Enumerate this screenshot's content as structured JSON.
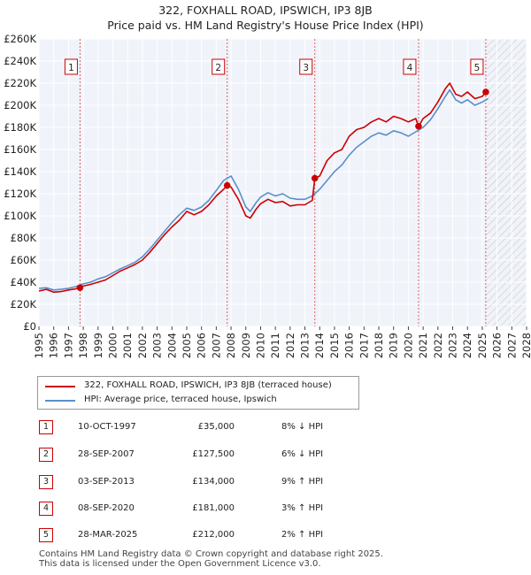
{
  "title_line1": "322, FOXHALL ROAD, IPSWICH, IP3 8JB",
  "title_line2": "Price paid vs. HM Land Registry's House Price Index (HPI)",
  "chart_data": {
    "type": "line",
    "xlim": [
      1995,
      2028
    ],
    "ylim": [
      0,
      260000
    ],
    "y_ticks": [
      0,
      20000,
      40000,
      60000,
      80000,
      100000,
      120000,
      140000,
      160000,
      180000,
      200000,
      220000,
      240000,
      260000
    ],
    "y_tick_labels": [
      "£0",
      "£20K",
      "£40K",
      "£60K",
      "£80K",
      "£100K",
      "£120K",
      "£140K",
      "£160K",
      "£180K",
      "£200K",
      "£220K",
      "£240K",
      "£260K"
    ],
    "x_ticks": [
      1995,
      1996,
      1997,
      1998,
      1999,
      2000,
      2001,
      2002,
      2003,
      2004,
      2005,
      2006,
      2007,
      2008,
      2009,
      2010,
      2011,
      2012,
      2013,
      2014,
      2015,
      2016,
      2017,
      2018,
      2019,
      2020,
      2021,
      2022,
      2023,
      2024,
      2025,
      2026,
      2027,
      2028
    ],
    "x_tick_labels": [
      "1995",
      "1996",
      "1997",
      "1998",
      "1999",
      "2000",
      "2001",
      "2002",
      "2003",
      "2004",
      "2005",
      "2006",
      "2007",
      "2008",
      "2009",
      "2010",
      "2011",
      "2012",
      "2013",
      "2014",
      "2015",
      "2016",
      "2017",
      "2018",
      "2019",
      "2020",
      "2021",
      "2022",
      "2023",
      "2024",
      "2025",
      "2026",
      "2027",
      "2028"
    ],
    "forecast_start": 2025.3,
    "series": [
      {
        "name": "322, FOXHALL ROAD, IPSWICH, IP3 8JB (terraced house)",
        "color": "#cc0000",
        "x": [
          1995.0,
          1995.5,
          1996.0,
          1996.5,
          1997.0,
          1997.5,
          1997.78,
          1998.0,
          1998.5,
          1999.0,
          1999.5,
          2000.0,
          2000.5,
          2001.0,
          2001.5,
          2002.0,
          2002.5,
          2003.0,
          2003.5,
          2004.0,
          2004.5,
          2005.0,
          2005.5,
          2006.0,
          2006.5,
          2007.0,
          2007.5,
          2007.74,
          2008.0,
          2008.5,
          2009.0,
          2009.3,
          2009.7,
          2010.0,
          2010.5,
          2011.0,
          2011.5,
          2012.0,
          2012.5,
          2013.0,
          2013.5,
          2013.67,
          2014.0,
          2014.5,
          2015.0,
          2015.5,
          2016.0,
          2016.5,
          2017.0,
          2017.5,
          2018.0,
          2018.5,
          2019.0,
          2019.5,
          2020.0,
          2020.5,
          2020.69,
          2021.0,
          2021.5,
          2022.0,
          2022.5,
          2022.8,
          2023.2,
          2023.6,
          2024.0,
          2024.5,
          2025.0,
          2025.24,
          2025.4
        ],
        "y": [
          32000,
          33500,
          31000,
          31500,
          33000,
          34000,
          35000,
          36500,
          38000,
          40000,
          42000,
          46000,
          50000,
          53000,
          56000,
          60000,
          67000,
          75000,
          83000,
          90000,
          96000,
          104000,
          101000,
          104000,
          110000,
          118000,
          124000,
          127500,
          126000,
          115000,
          100000,
          98000,
          106000,
          111000,
          115000,
          112000,
          113000,
          109000,
          110000,
          110000,
          114000,
          134000,
          136000,
          150000,
          157000,
          160000,
          172000,
          178000,
          180000,
          185000,
          188000,
          185000,
          190000,
          188000,
          185000,
          188000,
          181000,
          188000,
          193000,
          203000,
          215000,
          220000,
          210000,
          208000,
          212000,
          206000,
          208000,
          212000,
          210000
        ]
      },
      {
        "name": "HPI: Average price, terraced house, Ipswich",
        "color": "#5b8ec9",
        "x": [
          1995.0,
          1995.5,
          1996.0,
          1996.5,
          1997.0,
          1997.5,
          1998.0,
          1998.5,
          1999.0,
          1999.5,
          2000.0,
          2000.5,
          2001.0,
          2001.5,
          2002.0,
          2002.5,
          2003.0,
          2003.5,
          2004.0,
          2004.5,
          2005.0,
          2005.5,
          2006.0,
          2006.5,
          2007.0,
          2007.5,
          2008.0,
          2008.5,
          2009.0,
          2009.3,
          2009.7,
          2010.0,
          2010.5,
          2011.0,
          2011.5,
          2012.0,
          2012.5,
          2013.0,
          2013.5,
          2014.0,
          2014.5,
          2015.0,
          2015.5,
          2016.0,
          2016.5,
          2017.0,
          2017.5,
          2018.0,
          2018.5,
          2019.0,
          2019.5,
          2020.0,
          2020.5,
          2021.0,
          2021.5,
          2022.0,
          2022.5,
          2022.8,
          2023.2,
          2023.6,
          2024.0,
          2024.5,
          2025.0,
          2025.4
        ],
        "y": [
          34500,
          35000,
          33000,
          33500,
          34500,
          36000,
          38500,
          40000,
          43000,
          45000,
          48500,
          52000,
          55000,
          58000,
          63000,
          70000,
          78000,
          86000,
          94000,
          101000,
          107000,
          105000,
          108000,
          114000,
          123000,
          132000,
          136000,
          124000,
          108000,
          104000,
          112000,
          117000,
          121000,
          118000,
          120000,
          116000,
          115000,
          115000,
          118000,
          124000,
          132000,
          140000,
          146000,
          155000,
          162000,
          167000,
          172000,
          175000,
          173000,
          177000,
          175000,
          172000,
          176000,
          180000,
          187000,
          197000,
          208000,
          214000,
          205000,
          202000,
          205000,
          200000,
          203000,
          206000
        ]
      }
    ],
    "markers": [
      {
        "label": "1",
        "x": 1997.78,
        "y": 35000
      },
      {
        "label": "2",
        "x": 2007.74,
        "y": 127500
      },
      {
        "label": "3",
        "x": 2013.67,
        "y": 134000
      },
      {
        "label": "4",
        "x": 2020.69,
        "y": 181000
      },
      {
        "label": "5",
        "x": 2025.24,
        "y": 212000
      }
    ]
  },
  "legend": {
    "property_label": "322, FOXHALL ROAD, IPSWICH, IP3 8JB (terraced house)",
    "hpi_label": "HPI: Average price, terraced house, Ipswich",
    "property_color": "#cc0000",
    "hpi_color": "#5b8ec9"
  },
  "transactions": [
    {
      "num": "1",
      "date": "10-OCT-1997",
      "price": "£35,000",
      "hpi": "8% ↓ HPI"
    },
    {
      "num": "2",
      "date": "28-SEP-2007",
      "price": "£127,500",
      "hpi": "6% ↓ HPI"
    },
    {
      "num": "3",
      "date": "03-SEP-2013",
      "price": "£134,000",
      "hpi": "9% ↑ HPI"
    },
    {
      "num": "4",
      "date": "08-SEP-2020",
      "price": "£181,000",
      "hpi": "3% ↑ HPI"
    },
    {
      "num": "5",
      "date": "28-MAR-2025",
      "price": "£212,000",
      "hpi": "2% ↑ HPI"
    }
  ],
  "footer": {
    "line1": "Contains HM Land Registry data © Crown copyright and database right 2025.",
    "line2": "This data is licensed under the Open Government Licence v3.0."
  }
}
